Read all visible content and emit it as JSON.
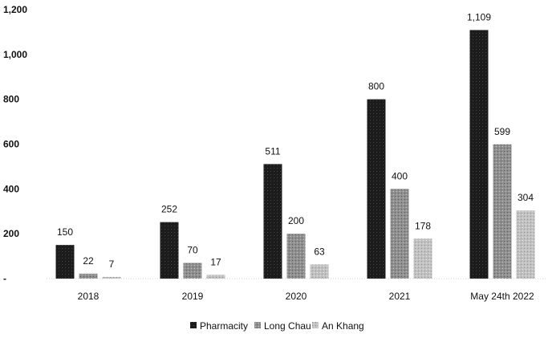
{
  "chart_data": {
    "type": "bar",
    "categories": [
      "2018",
      "2019",
      "2020",
      "2021",
      "May 24th 2022"
    ],
    "series": [
      {
        "name": "Pharmacity",
        "values": [
          150,
          252,
          511,
          800,
          1109
        ],
        "labels": [
          "150",
          "252",
          "511",
          "800",
          "1,109"
        ],
        "color": "#1c1c1c"
      },
      {
        "name": "Long Chau",
        "values": [
          22,
          70,
          200,
          400,
          599
        ],
        "labels": [
          "22",
          "70",
          "200",
          "400",
          "599"
        ],
        "color": "#8f8f8f"
      },
      {
        "name": "An Khang",
        "values": [
          7,
          17,
          63,
          178,
          304
        ],
        "labels": [
          "7",
          "17",
          "63",
          "178",
          "304"
        ],
        "color": "#b9b9b9"
      }
    ],
    "y_ticks": [
      "-",
      "200",
      "400",
      "600",
      "800",
      "1,000",
      "1,200"
    ],
    "ylim": [
      0,
      1200
    ],
    "grid": false,
    "legend_position": "bottom-center"
  }
}
